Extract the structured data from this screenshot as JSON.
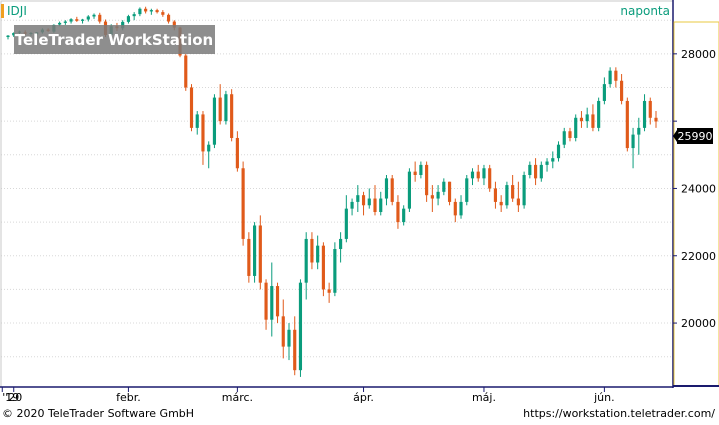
{
  "chart_data": {
    "type": "candlestick",
    "symbol": "IDJI",
    "period": "naponta",
    "watermark": "TeleTrader WorkStation",
    "last_price": "25990",
    "y_ticks": [
      20000,
      22000,
      24000,
      26000,
      28000
    ],
    "y_tick_labels": [
      "20000",
      "22000",
      "24000",
      "",
      "28000"
    ],
    "ylim": [
      18100,
      29600
    ],
    "x_labels": [
      {
        "label": "'19",
        "index": -1
      },
      {
        "label": "'20",
        "index": 1
      },
      {
        "label": "febr.",
        "index": 21
      },
      {
        "label": "márc.",
        "index": 40
      },
      {
        "label": "ápr.",
        "index": 62
      },
      {
        "label": "máj.",
        "index": 83
      },
      {
        "label": "jún.",
        "index": 104
      }
    ],
    "up_color": "#0a9c7c",
    "down_color": "#e05a1a",
    "axis_color": "#1a1a6e",
    "candles": [
      [
        28500,
        28560,
        28430,
        28540
      ],
      [
        28550,
        28640,
        28500,
        28620
      ],
      [
        28630,
        28690,
        28580,
        28660
      ],
      [
        28640,
        28700,
        28560,
        28600
      ],
      [
        28600,
        28650,
        28540,
        28620
      ],
      [
        28580,
        28650,
        28520,
        28640
      ],
      [
        28640,
        28760,
        28600,
        28720
      ],
      [
        28720,
        28760,
        28650,
        28680
      ],
      [
        28660,
        28880,
        28620,
        28860
      ],
      [
        28870,
        28960,
        28820,
        28920
      ],
      [
        28920,
        29000,
        28860,
        28960
      ],
      [
        28960,
        29060,
        28900,
        29030
      ],
      [
        29030,
        29100,
        28950,
        28980
      ],
      [
        28980,
        29040,
        28900,
        29020
      ],
      [
        29020,
        29150,
        28960,
        29110
      ],
      [
        29110,
        29200,
        29040,
        29160
      ],
      [
        29160,
        29220,
        28900,
        28960
      ],
      [
        28960,
        29020,
        28500,
        28560
      ],
      [
        28560,
        28880,
        28500,
        28820
      ],
      [
        28820,
        28920,
        28680,
        28760
      ],
      [
        28760,
        29000,
        28700,
        28950
      ],
      [
        28950,
        29160,
        28900,
        29120
      ],
      [
        29120,
        29240,
        29000,
        29180
      ],
      [
        29180,
        29380,
        29120,
        29340
      ],
      [
        29340,
        29400,
        29200,
        29260
      ],
      [
        29260,
        29340,
        29160,
        29300
      ],
      [
        29300,
        29340,
        29200,
        29240
      ],
      [
        29240,
        29300,
        29100,
        29160
      ],
      [
        29160,
        29200,
        28900,
        28960
      ],
      [
        28960,
        29000,
        28700,
        28780
      ],
      [
        28780,
        28800,
        27900,
        27950
      ],
      [
        27950,
        28000,
        26900,
        27000
      ],
      [
        27000,
        27100,
        25700,
        25800
      ],
      [
        25800,
        26300,
        25600,
        26200
      ],
      [
        26200,
        26300,
        24700,
        25100
      ],
      [
        25100,
        25400,
        24600,
        25300
      ],
      [
        25300,
        26800,
        25200,
        26700
      ],
      [
        26700,
        27100,
        25900,
        26000
      ],
      [
        26000,
        26900,
        25900,
        26800
      ],
      [
        26800,
        26950,
        25400,
        25500
      ],
      [
        25500,
        25700,
        24500,
        24600
      ],
      [
        24600,
        24800,
        22300,
        22500
      ],
      [
        22500,
        22700,
        21200,
        21400
      ],
      [
        21400,
        23000,
        21200,
        22900
      ],
      [
        22900,
        23200,
        21000,
        21200
      ],
      [
        21200,
        21300,
        19800,
        20100
      ],
      [
        20100,
        21800,
        19600,
        21100
      ],
      [
        21100,
        21200,
        20000,
        20200
      ],
      [
        20200,
        20700,
        18950,
        19300
      ],
      [
        19300,
        20000,
        18900,
        19800
      ],
      [
        19800,
        20200,
        18450,
        18600
      ],
      [
        18600,
        21300,
        18400,
        21200
      ],
      [
        21200,
        22700,
        20700,
        22500
      ],
      [
        22500,
        22700,
        21600,
        21800
      ],
      [
        21800,
        22600,
        21600,
        22300
      ],
      [
        22300,
        22400,
        20800,
        21000
      ],
      [
        21000,
        21200,
        20600,
        20900
      ],
      [
        20900,
        22400,
        20800,
        22200
      ],
      [
        22200,
        22700,
        21800,
        22500
      ],
      [
        22500,
        23800,
        22400,
        23400
      ],
      [
        23400,
        23700,
        23200,
        23600
      ],
      [
        23600,
        24100,
        23300,
        23800
      ],
      [
        23800,
        23900,
        23200,
        23500
      ],
      [
        23500,
        24000,
        23400,
        23700
      ],
      [
        23700,
        24100,
        23200,
        23300
      ],
      [
        23300,
        23900,
        23200,
        23700
      ],
      [
        23700,
        24400,
        23500,
        24300
      ],
      [
        24300,
        24400,
        23500,
        23600
      ],
      [
        23600,
        23800,
        22800,
        23000
      ],
      [
        23000,
        23500,
        22900,
        23400
      ],
      [
        23400,
        24600,
        23300,
        24500
      ],
      [
        24500,
        24800,
        24200,
        24400
      ],
      [
        24400,
        24800,
        24300,
        24700
      ],
      [
        24700,
        24800,
        23600,
        23800
      ],
      [
        23800,
        24100,
        23300,
        23700
      ],
      [
        23700,
        24100,
        23500,
        23900
      ],
      [
        23900,
        24300,
        23800,
        24200
      ],
      [
        24200,
        24200,
        23500,
        23600
      ],
      [
        23600,
        23700,
        23000,
        23200
      ],
      [
        23200,
        23800,
        23100,
        23600
      ],
      [
        23600,
        24400,
        23500,
        24300
      ],
      [
        24300,
        24600,
        24100,
        24500
      ],
      [
        24500,
        24700,
        24200,
        24300
      ],
      [
        24300,
        24700,
        24100,
        24600
      ],
      [
        24600,
        24700,
        23900,
        24000
      ],
      [
        24000,
        24200,
        23400,
        23600
      ],
      [
        23600,
        23800,
        23300,
        23500
      ],
      [
        23500,
        24200,
        23400,
        24100
      ],
      [
        24100,
        24400,
        23600,
        23700
      ],
      [
        23700,
        24200,
        23300,
        23500
      ],
      [
        23500,
        24500,
        23400,
        24400
      ],
      [
        24400,
        24800,
        24300,
        24700
      ],
      [
        24700,
        24900,
        24100,
        24300
      ],
      [
        24300,
        24800,
        24200,
        24700
      ],
      [
        24700,
        24900,
        24500,
        24800
      ],
      [
        24800,
        25100,
        24600,
        24900
      ],
      [
        24900,
        25400,
        24800,
        25300
      ],
      [
        25300,
        25800,
        25200,
        25700
      ],
      [
        25700,
        25800,
        25400,
        25500
      ],
      [
        25500,
        26200,
        25400,
        26100
      ],
      [
        26100,
        26300,
        25800,
        26000
      ],
      [
        26000,
        26400,
        25800,
        26200
      ],
      [
        26200,
        26500,
        25700,
        25800
      ],
      [
        25800,
        26700,
        25700,
        26600
      ],
      [
        26600,
        27300,
        26500,
        27100
      ],
      [
        27100,
        27600,
        27000,
        27500
      ],
      [
        27500,
        27600,
        27000,
        27200
      ],
      [
        27200,
        27400,
        26500,
        26600
      ],
      [
        26600,
        26700,
        25100,
        25200
      ],
      [
        25200,
        25800,
        24600,
        25600
      ],
      [
        25600,
        26100,
        25000,
        25800
      ],
      [
        25800,
        26800,
        25700,
        26600
      ],
      [
        26600,
        26700,
        25900,
        26100
      ],
      [
        26100,
        26300,
        25800,
        25990
      ]
    ]
  }
}
